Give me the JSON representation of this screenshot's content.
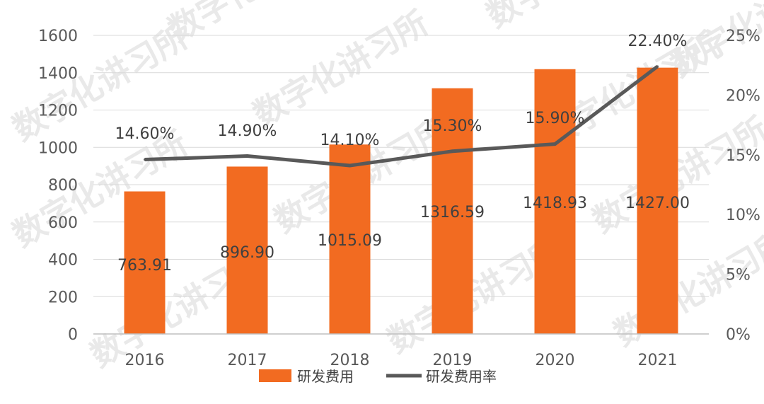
{
  "colors": {
    "bar": "#f26b21",
    "line": "#595959",
    "grid": "#d9d9d9",
    "axis": "#bfbfbf"
  },
  "watermark_text": "数字化讲习所",
  "chart_data": {
    "type": "bar",
    "title": "",
    "categories": [
      "2016",
      "2017",
      "2018",
      "2019",
      "2020",
      "2021"
    ],
    "series": [
      {
        "name": "研发费用",
        "type": "bar",
        "axis": "left",
        "values": [
          763.91,
          896.9,
          1015.09,
          1316.59,
          1418.93,
          1427.0
        ],
        "labels": [
          "763.91",
          "896.90",
          "1015.09",
          "1316.59",
          "1418.93",
          "1427.00"
        ]
      },
      {
        "name": "研发费用率",
        "type": "line",
        "axis": "right",
        "values": [
          14.6,
          14.9,
          14.1,
          15.3,
          15.9,
          22.4
        ],
        "labels": [
          "14.60%",
          "14.90%",
          "14.10%",
          "15.30%",
          "15.90%",
          "22.40%"
        ]
      }
    ],
    "y_left": {
      "lim": [
        0,
        1600
      ],
      "ticks": [
        0,
        200,
        400,
        600,
        800,
        1000,
        1200,
        1400,
        1600
      ]
    },
    "y_right": {
      "lim": [
        0,
        25
      ],
      "ticks": [
        0,
        5,
        10,
        15,
        20,
        25
      ],
      "tick_labels": [
        "0%",
        "5%",
        "10%",
        "15%",
        "20%",
        "25%"
      ]
    },
    "grid": true,
    "legend": "bottom-center"
  }
}
